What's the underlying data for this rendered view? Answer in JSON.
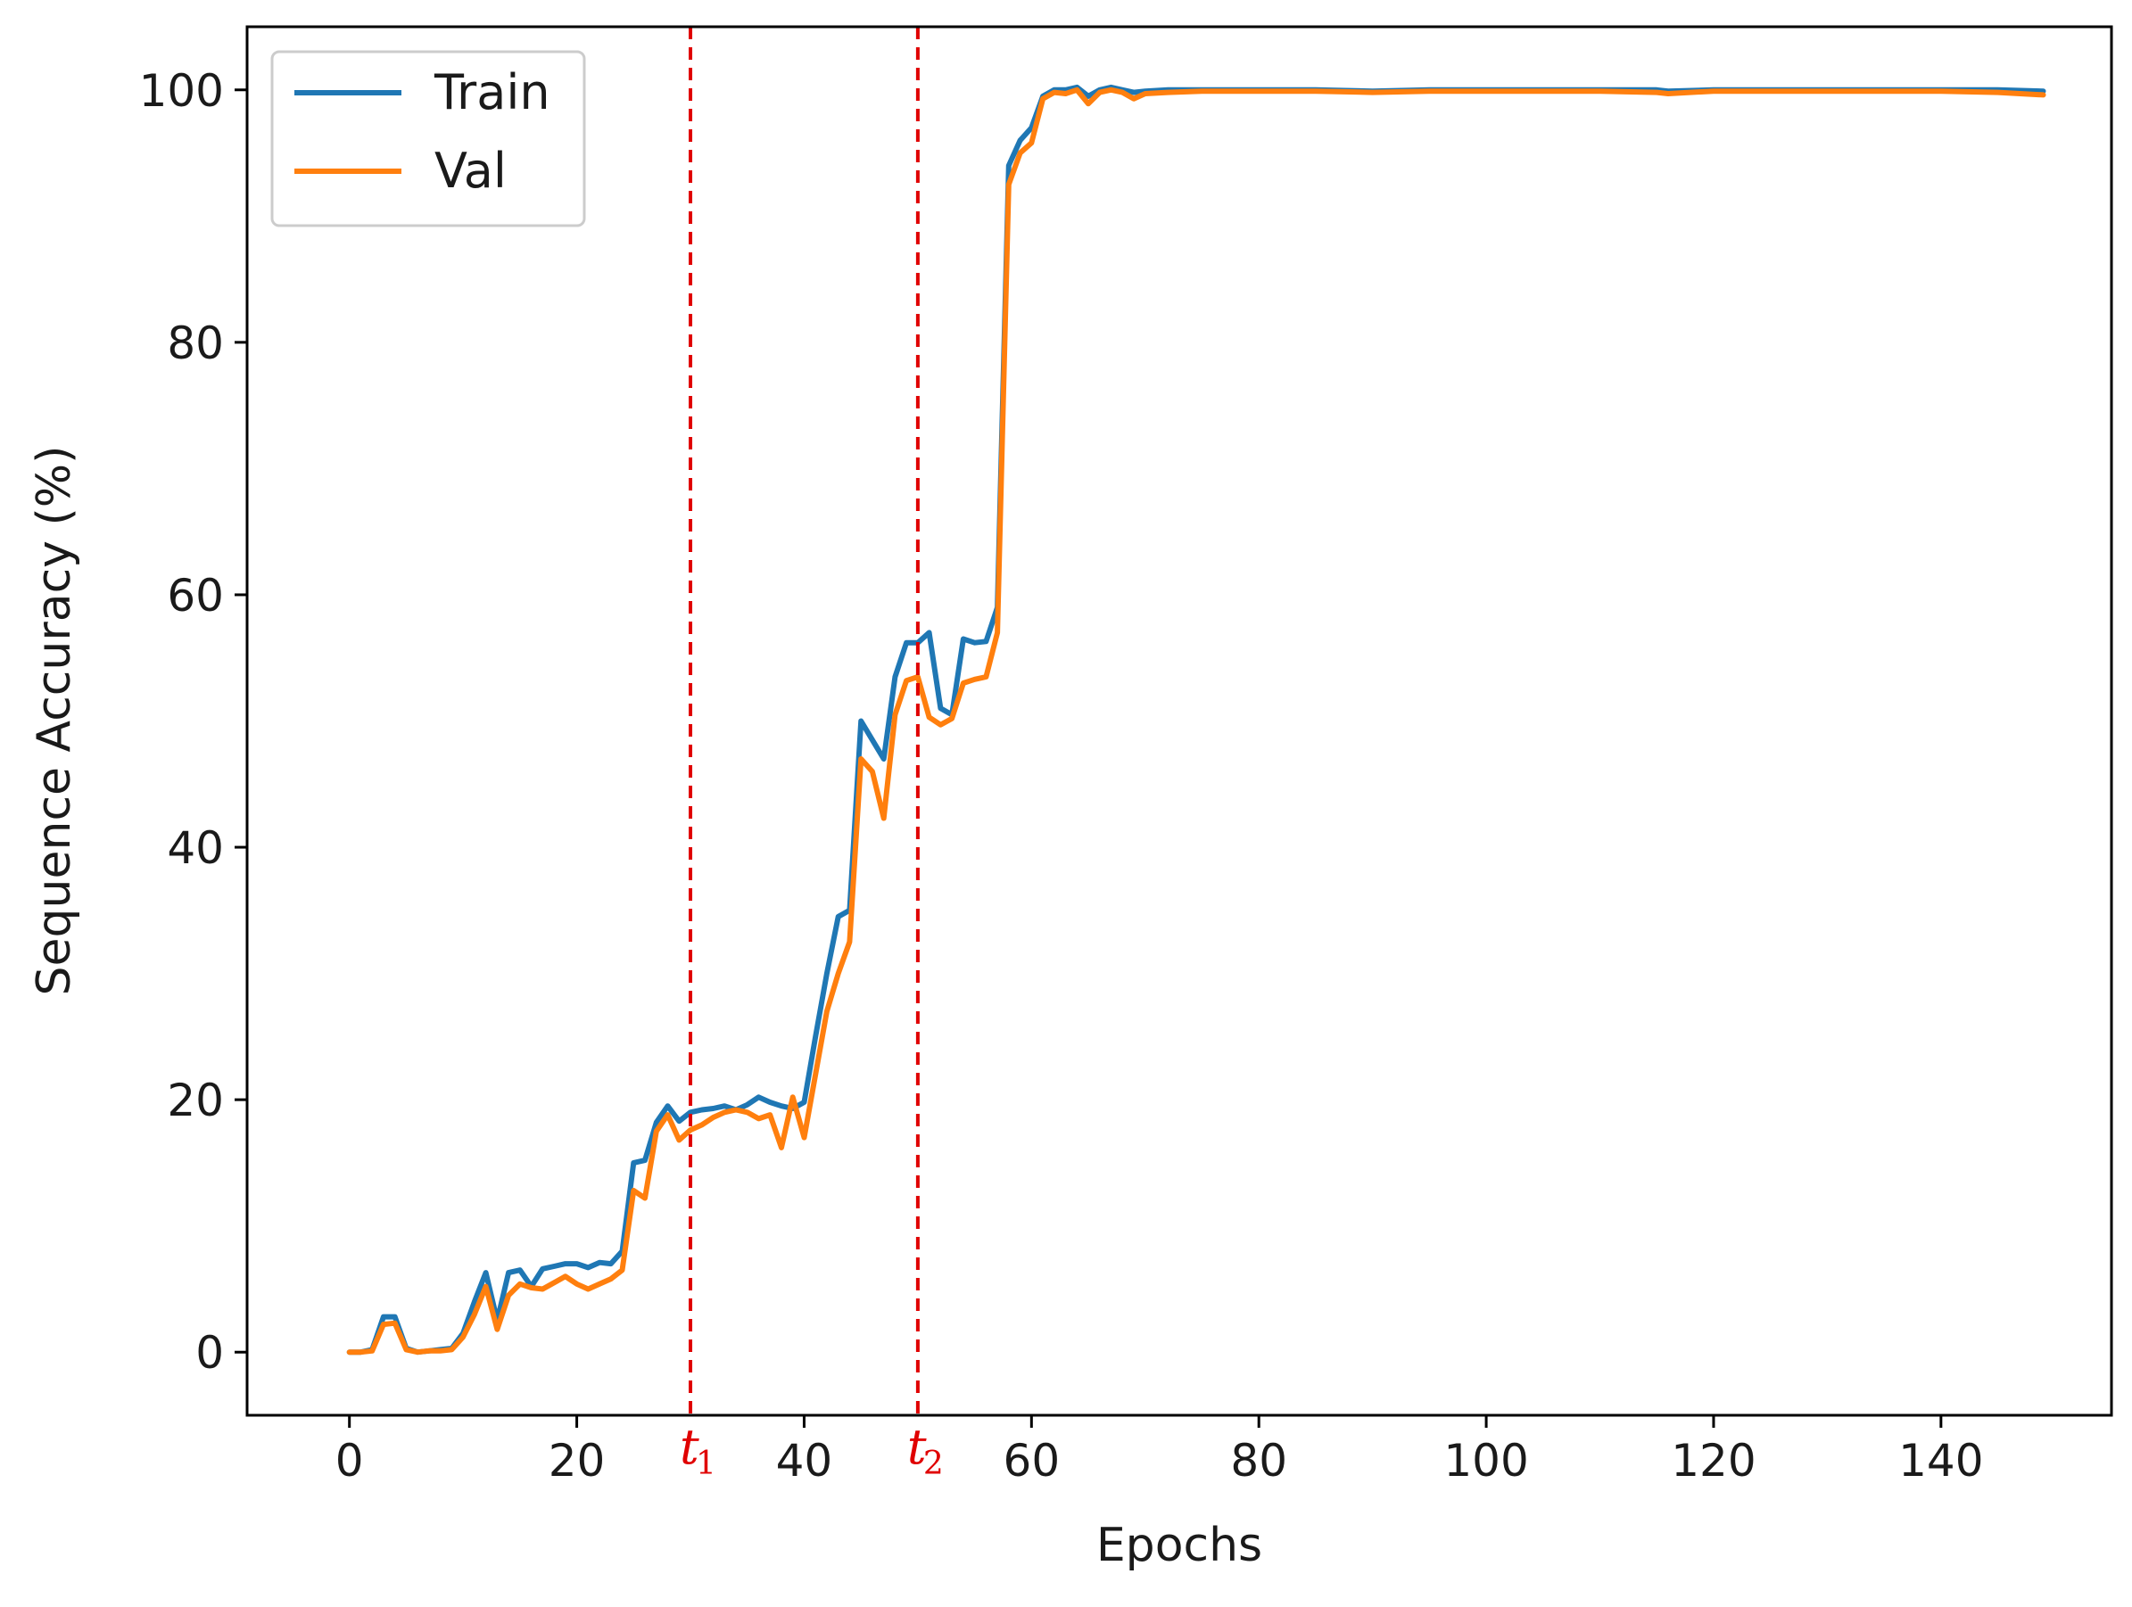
{
  "chart_data": {
    "type": "line",
    "title": "",
    "xlabel": "Epochs",
    "ylabel": "Sequence Accuracy (%)",
    "xlim": [
      -9,
      155
    ],
    "ylim": [
      -5,
      105
    ],
    "xticks": [
      0,
      20,
      40,
      60,
      80,
      100,
      120,
      140
    ],
    "yticks": [
      0,
      20,
      40,
      60,
      80,
      100
    ],
    "grid": false,
    "legend": "top-left",
    "series": [
      {
        "name": "Train",
        "color": "#1f77b4",
        "x": [
          0,
          1,
          2,
          3,
          4,
          5,
          6,
          7,
          8,
          9,
          10,
          11,
          12,
          13,
          14,
          15,
          16,
          17,
          18,
          19,
          20,
          21,
          22,
          23,
          24,
          25,
          26,
          27,
          28,
          29,
          30,
          31,
          32,
          33,
          34,
          35,
          36,
          37,
          38,
          39,
          40,
          41,
          42,
          43,
          44,
          45,
          46,
          47,
          48,
          49,
          50,
          51,
          52,
          53,
          54,
          55,
          56,
          57,
          58,
          59,
          60,
          61,
          62,
          63,
          64,
          65,
          66,
          67,
          68,
          69,
          70,
          72,
          75,
          80,
          85,
          90,
          95,
          100,
          105,
          110,
          115,
          116,
          120,
          125,
          130,
          135,
          140,
          145,
          149
        ],
        "y": [
          0,
          0,
          0.2,
          2.8,
          2.8,
          0.3,
          0,
          0.1,
          0.2,
          0.3,
          1.5,
          4,
          6.3,
          2.5,
          6.3,
          6.5,
          5.2,
          6.6,
          6.8,
          7,
          7,
          6.7,
          7.1,
          7,
          8,
          15,
          15.2,
          18.2,
          19.5,
          18.3,
          19,
          19.2,
          19.3,
          19.5,
          19.2,
          19.6,
          20.2,
          19.8,
          19.5,
          19.3,
          19.8,
          25,
          30,
          34.5,
          35,
          50,
          48.5,
          47,
          53.5,
          56.2,
          56.2,
          57,
          51,
          50.5,
          56.5,
          56.2,
          56.3,
          59,
          94,
          96,
          97,
          99.5,
          100,
          100,
          100.2,
          99.5,
          100,
          100.2,
          100,
          99.8,
          99.9,
          100,
          100,
          100,
          100,
          99.9,
          100,
          100,
          100,
          100,
          100,
          99.9,
          100,
          100,
          100,
          100,
          100,
          100,
          99.9
        ]
      },
      {
        "name": "Val",
        "color": "#ff7f0e",
        "x": [
          0,
          1,
          2,
          3,
          4,
          5,
          6,
          7,
          8,
          9,
          10,
          11,
          12,
          13,
          14,
          15,
          16,
          17,
          18,
          19,
          20,
          21,
          22,
          23,
          24,
          25,
          26,
          27,
          28,
          29,
          30,
          31,
          32,
          33,
          34,
          35,
          36,
          37,
          38,
          39,
          40,
          41,
          42,
          43,
          44,
          45,
          46,
          47,
          48,
          49,
          50,
          51,
          52,
          53,
          54,
          55,
          56,
          57,
          58,
          59,
          60,
          61,
          62,
          63,
          64,
          65,
          66,
          67,
          68,
          69,
          70,
          72,
          75,
          80,
          85,
          90,
          95,
          100,
          105,
          110,
          115,
          116,
          120,
          125,
          130,
          135,
          140,
          145,
          149
        ],
        "y": [
          0,
          0,
          0.1,
          2.2,
          2.3,
          0.2,
          0,
          0.1,
          0.1,
          0.2,
          1.2,
          3,
          5.2,
          1.8,
          4.5,
          5.4,
          5.1,
          5,
          5.5,
          6,
          5.4,
          5,
          5.4,
          5.8,
          6.5,
          12.8,
          12.2,
          17.5,
          18.8,
          16.8,
          17.6,
          18,
          18.6,
          19,
          19.2,
          19,
          18.5,
          18.8,
          16.2,
          20.2,
          17,
          22,
          27,
          30,
          32.5,
          47,
          46,
          42.3,
          50.5,
          53.2,
          53.5,
          50.3,
          49.7,
          50.2,
          53,
          53.3,
          53.5,
          57,
          92.5,
          95,
          95.8,
          99.3,
          99.8,
          99.7,
          100,
          98.9,
          99.8,
          100,
          99.8,
          99.3,
          99.7,
          99.8,
          99.9,
          99.9,
          99.9,
          99.8,
          99.9,
          99.9,
          99.9,
          99.9,
          99.8,
          99.7,
          99.9,
          99.9,
          99.9,
          99.9,
          99.9,
          99.8,
          99.6
        ]
      }
    ],
    "annotations": [
      {
        "type": "vline",
        "x": 30,
        "label": "t",
        "subscript": "1",
        "color": "#e00000",
        "style": "dashed"
      },
      {
        "type": "vline",
        "x": 50,
        "label": "t",
        "subscript": "2",
        "color": "#e00000",
        "style": "dashed"
      }
    ]
  }
}
